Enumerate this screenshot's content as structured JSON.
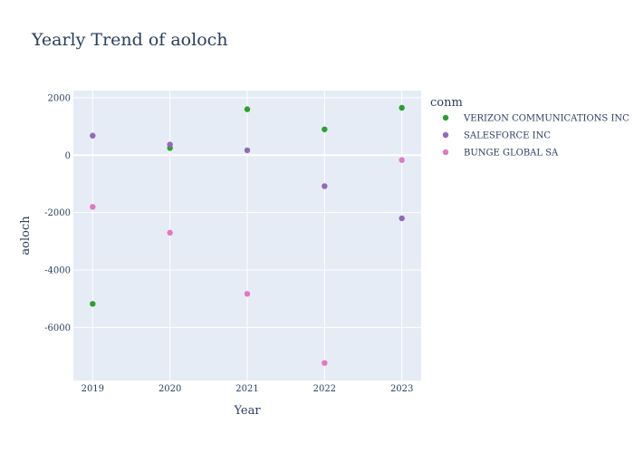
{
  "chart_data": {
    "type": "scatter",
    "title": "Yearly Trend of aoloch",
    "xlabel": "Year",
    "ylabel": "aoloch",
    "x_ticks": [
      2019,
      2020,
      2021,
      2022,
      2023
    ],
    "y_ticks": [
      2000,
      0,
      -2000,
      -4000,
      -6000
    ],
    "xlim": [
      2018.75,
      2023.25
    ],
    "ylim": [
      -7850,
      2250
    ],
    "grid": true,
    "legend": {
      "title": "conm",
      "placement": "right"
    },
    "series": [
      {
        "name": "VERIZON COMMUNICATIONS INC",
        "color": "#2ca02c",
        "points": [
          {
            "x": 2019,
            "y": -5180
          },
          {
            "x": 2020,
            "y": 250
          },
          {
            "x": 2021,
            "y": 1600
          },
          {
            "x": 2022,
            "y": 900
          },
          {
            "x": 2023,
            "y": 1650
          }
        ]
      },
      {
        "name": "SALESFORCE INC",
        "color": "#9467bd",
        "points": [
          {
            "x": 2019,
            "y": 680
          },
          {
            "x": 2020,
            "y": 370
          },
          {
            "x": 2021,
            "y": 170
          },
          {
            "x": 2022,
            "y": -1080
          },
          {
            "x": 2023,
            "y": -2200
          }
        ]
      },
      {
        "name": "BUNGE GLOBAL SA",
        "color": "#e377c2",
        "points": [
          {
            "x": 2019,
            "y": -1800
          },
          {
            "x": 2020,
            "y": -2700
          },
          {
            "x": 2021,
            "y": -4830
          },
          {
            "x": 2022,
            "y": -7240
          },
          {
            "x": 2023,
            "y": -170
          }
        ]
      }
    ]
  }
}
